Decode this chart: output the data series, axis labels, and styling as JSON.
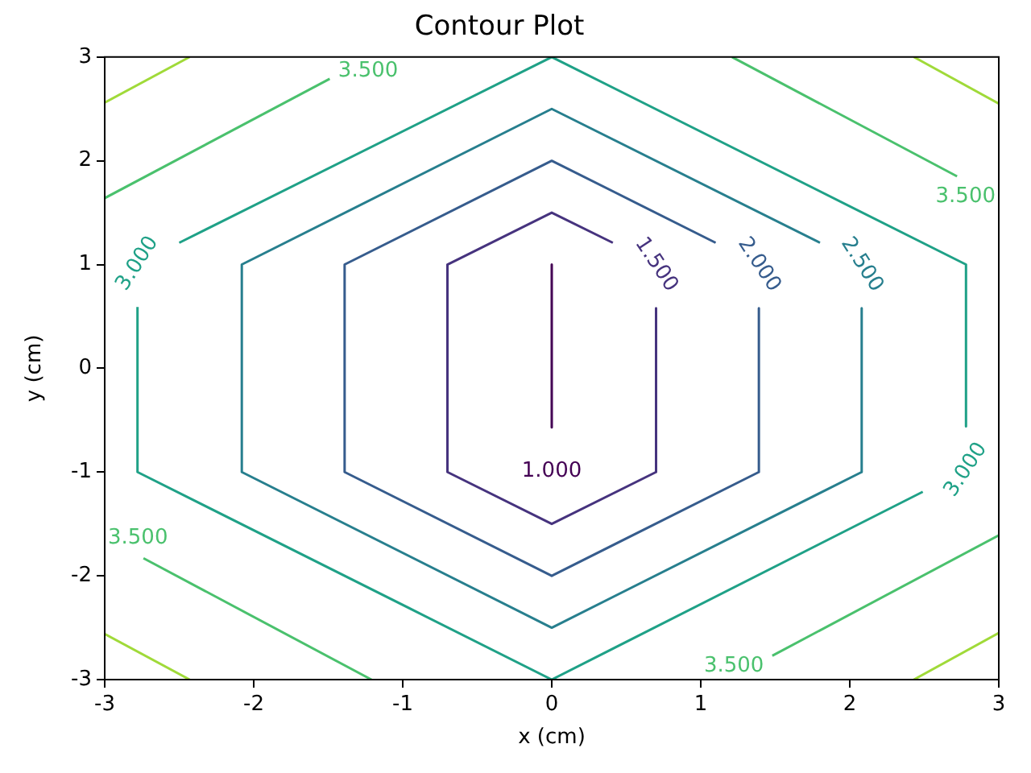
{
  "chart_data": {
    "type": "line",
    "title": "Contour Plot",
    "xlabel": "x (cm)",
    "ylabel": "y (cm)",
    "xlim": [
      -3,
      3
    ],
    "ylim": [
      -3,
      3
    ],
    "xticks": [
      -3,
      -2,
      -1,
      0,
      1,
      2,
      3
    ],
    "yticks": [
      -3,
      -2,
      -1,
      0,
      1,
      2,
      3
    ],
    "marker": "none",
    "series": [
      {
        "color": "#440154",
        "x": [
          0,
          0
        ],
        "values": [
          1,
          -0.57
        ]
      },
      {
        "color": "#46337e",
        "x": [
          0.7,
          0.7,
          0,
          -0.7,
          -0.7,
          0,
          0.41
        ],
        "values": [
          0.58,
          -1,
          -1.5,
          -1,
          1,
          1.5,
          1.21
        ]
      },
      {
        "color": "#365c8d",
        "x": [
          1.39,
          1.39,
          0,
          -1.39,
          -1.39,
          0,
          1.1
        ],
        "values": [
          0.58,
          -1,
          -2,
          -1,
          1,
          2,
          1.21
        ]
      },
      {
        "color": "#277f8e",
        "x": [
          2.08,
          2.08,
          0,
          -2.08,
          -2.08,
          0,
          1.8
        ],
        "values": [
          0.58,
          -1,
          -2.5,
          -1,
          1,
          2.5,
          1.21
        ]
      },
      {
        "color": "#1fa187",
        "x": [
          -2.5,
          0,
          2.78,
          2.78
        ],
        "values": [
          1.21,
          3,
          1,
          -0.56
        ]
      },
      {
        "color": "#1fa187",
        "x": [
          2.49,
          0,
          -2.78,
          -2.78
        ],
        "values": [
          -1.19,
          -3,
          -1,
          0.59
        ]
      },
      {
        "color": "#4ac16d",
        "x": [
          -3,
          -1.49
        ],
        "values": [
          1.64,
          2.79
        ]
      },
      {
        "color": "#4ac16d",
        "x": [
          1.21,
          2.72
        ],
        "values": [
          3,
          1.85
        ]
      },
      {
        "color": "#4ac16d",
        "x": [
          -2.74,
          -1.21
        ],
        "values": [
          -1.83,
          -3
        ]
      },
      {
        "color": "#4ac16d",
        "x": [
          1.48,
          3
        ],
        "values": [
          -2.77,
          -1.61
        ]
      },
      {
        "color": "#a0da39",
        "x": [
          -3,
          -2.43
        ],
        "values": [
          2.56,
          3
        ]
      },
      {
        "color": "#a0da39",
        "x": [
          2.43,
          3
        ],
        "values": [
          3,
          2.55
        ]
      },
      {
        "color": "#a0da39",
        "x": [
          -3,
          -2.43
        ],
        "values": [
          -2.56,
          -3
        ]
      },
      {
        "color": "#a0da39",
        "x": [
          2.43,
          3
        ],
        "values": [
          -3,
          -2.55
        ]
      }
    ],
    "annotations": [
      {
        "text": "1.000",
        "x": 0,
        "y": -0.57
      },
      {
        "text": "1.500",
        "x": 0.7,
        "y": 0.58
      },
      {
        "text": "2.000",
        "x": 1.39,
        "y": 0.58
      },
      {
        "text": "2.500",
        "x": 2.08,
        "y": 0.58
      },
      {
        "text": "3.000",
        "x": -2.78,
        "y": 0.59
      },
      {
        "text": "3.000",
        "x": 2.78,
        "y": -0.56
      },
      {
        "text": "3.500",
        "x": -1.49,
        "y": 2.79
      },
      {
        "text": "3.500",
        "x": 2.72,
        "y": 1.85
      },
      {
        "text": "3.500",
        "x": -2.74,
        "y": -1.83
      },
      {
        "text": "3.500",
        "x": 1.48,
        "y": -2.77
      }
    ]
  }
}
